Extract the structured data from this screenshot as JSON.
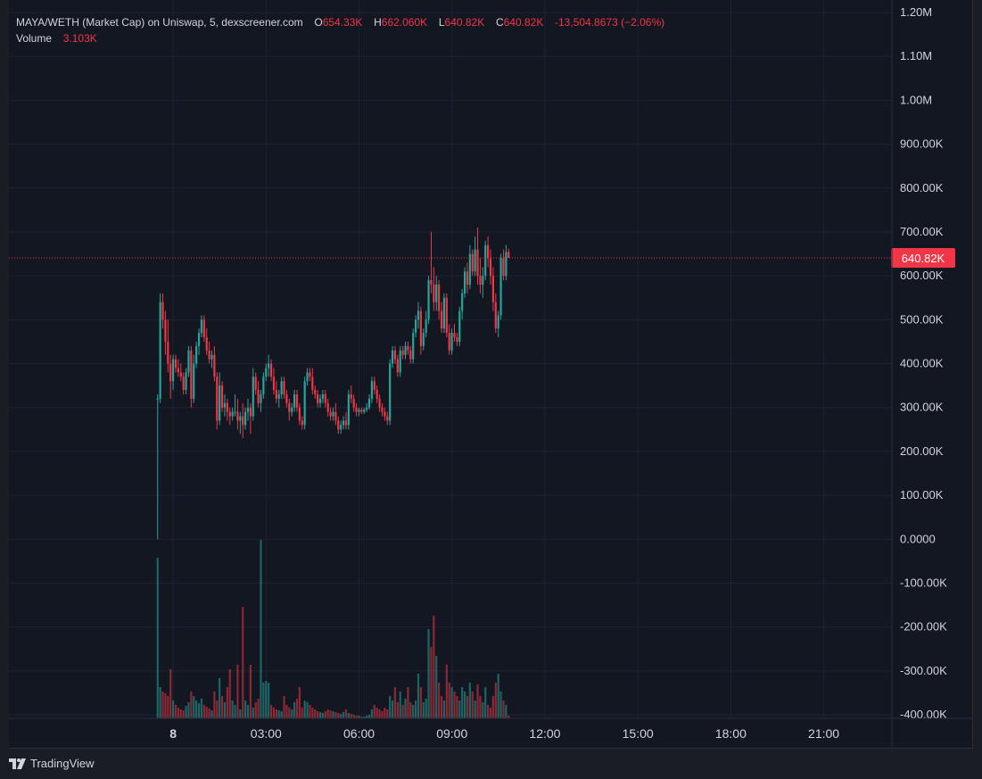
{
  "legend": {
    "symbol": "MAYA/WETH (Market Cap) on Uniswap, 5, dexscreener.com",
    "open_label": "O",
    "open_value": "654.33K",
    "high_label": "H",
    "high_value": "662.060K",
    "low_label": "L",
    "low_value": "640.82K",
    "close_label": "C",
    "close_value": "640.82K",
    "change": "-13,504.8673 (−2.06%)",
    "volume_label": "Volume",
    "volume_value": "3.103K"
  },
  "branding": {
    "logo_icon": "tradingview-logo-icon",
    "label": "TradingView"
  },
  "colors": {
    "up": "#26a69a",
    "down": "#f23645",
    "background": "#131722",
    "grid": "#1f2330",
    "text": "#d1d4dc"
  },
  "chart_data": {
    "type": "candlestick",
    "title": "MAYA/WETH (Market Cap) on Uniswap, 5, dexscreener.com",
    "interval": "5",
    "ylim": [
      -400000,
      1200000
    ],
    "y_ticks": [
      "1.20M",
      "1.10M",
      "1.00M",
      "900.00K",
      "800.00K",
      "700.00K",
      "600.00K",
      "500.00K",
      "400.00K",
      "300.00K",
      "200.00K",
      "100.00K",
      "0.0000",
      "-100.00K",
      "-200.00K",
      "-300.00K",
      "-400.00K"
    ],
    "y_tick_values": [
      1200000,
      1100000,
      1000000,
      900000,
      800000,
      700000,
      600000,
      500000,
      400000,
      300000,
      200000,
      100000,
      0,
      -100000,
      -200000,
      -300000,
      -400000
    ],
    "x_ticks": [
      "8",
      "03:00",
      "06:00",
      "09:00",
      "12:00",
      "15:00",
      "18:00",
      "21:00"
    ],
    "x_tick_hours": [
      0,
      3,
      6,
      9,
      12,
      15,
      18,
      21
    ],
    "x_range_hours": [
      -5.3,
      23.2
    ],
    "last_price": 640820,
    "last_price_label": "640.82K",
    "grid": true,
    "start_hour": -0.5,
    "bar_hours": 0.0833,
    "candles": [
      {
        "o": 320000,
        "h": 330000,
        "l": 0,
        "c": 320000,
        "v": 180
      },
      {
        "o": 320000,
        "h": 560000,
        "l": 310000,
        "c": 540000,
        "v": 35
      },
      {
        "o": 540000,
        "h": 560000,
        "l": 480000,
        "c": 500000,
        "v": 30
      },
      {
        "o": 500000,
        "h": 520000,
        "l": 420000,
        "c": 450000,
        "v": 28
      },
      {
        "o": 450000,
        "h": 500000,
        "l": 380000,
        "c": 400000,
        "v": 25
      },
      {
        "o": 400000,
        "h": 420000,
        "l": 320000,
        "c": 360000,
        "v": 55
      },
      {
        "o": 360000,
        "h": 420000,
        "l": 340000,
        "c": 410000,
        "v": 20
      },
      {
        "o": 410000,
        "h": 420000,
        "l": 380000,
        "c": 390000,
        "v": 15
      },
      {
        "o": 390000,
        "h": 410000,
        "l": 370000,
        "c": 380000,
        "v": 12
      },
      {
        "o": 380000,
        "h": 400000,
        "l": 360000,
        "c": 370000,
        "v": 10
      },
      {
        "o": 370000,
        "h": 380000,
        "l": 330000,
        "c": 340000,
        "v": 9
      },
      {
        "o": 340000,
        "h": 390000,
        "l": 330000,
        "c": 380000,
        "v": 14
      },
      {
        "o": 380000,
        "h": 440000,
        "l": 370000,
        "c": 430000,
        "v": 18
      },
      {
        "o": 430000,
        "h": 440000,
        "l": 300000,
        "c": 320000,
        "v": 30
      },
      {
        "o": 320000,
        "h": 420000,
        "l": 310000,
        "c": 400000,
        "v": 25
      },
      {
        "o": 400000,
        "h": 450000,
        "l": 390000,
        "c": 440000,
        "v": 20
      },
      {
        "o": 440000,
        "h": 480000,
        "l": 420000,
        "c": 470000,
        "v": 17
      },
      {
        "o": 470000,
        "h": 510000,
        "l": 460000,
        "c": 500000,
        "v": 22
      },
      {
        "o": 500000,
        "h": 510000,
        "l": 450000,
        "c": 460000,
        "v": 15
      },
      {
        "o": 460000,
        "h": 480000,
        "l": 420000,
        "c": 430000,
        "v": 13
      },
      {
        "o": 430000,
        "h": 450000,
        "l": 400000,
        "c": 410000,
        "v": 11
      },
      {
        "o": 410000,
        "h": 430000,
        "l": 390000,
        "c": 420000,
        "v": 9
      },
      {
        "o": 420000,
        "h": 440000,
        "l": 360000,
        "c": 370000,
        "v": 30
      },
      {
        "o": 370000,
        "h": 380000,
        "l": 250000,
        "c": 270000,
        "v": 20
      },
      {
        "o": 270000,
        "h": 380000,
        "l": 260000,
        "c": 350000,
        "v": 45
      },
      {
        "o": 350000,
        "h": 360000,
        "l": 290000,
        "c": 300000,
        "v": 25
      },
      {
        "o": 300000,
        "h": 330000,
        "l": 280000,
        "c": 310000,
        "v": 18
      },
      {
        "o": 310000,
        "h": 320000,
        "l": 270000,
        "c": 290000,
        "v": 35
      },
      {
        "o": 290000,
        "h": 300000,
        "l": 260000,
        "c": 280000,
        "v": 55
      },
      {
        "o": 280000,
        "h": 300000,
        "l": 270000,
        "c": 290000,
        "v": 20
      },
      {
        "o": 290000,
        "h": 330000,
        "l": 280000,
        "c": 290000,
        "v": 15
      },
      {
        "o": 290000,
        "h": 320000,
        "l": 250000,
        "c": 270000,
        "v": 60
      },
      {
        "o": 270000,
        "h": 290000,
        "l": 240000,
        "c": 280000,
        "v": 10
      },
      {
        "o": 280000,
        "h": 310000,
        "l": 230000,
        "c": 260000,
        "v": 125
      },
      {
        "o": 260000,
        "h": 300000,
        "l": 250000,
        "c": 290000,
        "v": 20
      },
      {
        "o": 290000,
        "h": 320000,
        "l": 270000,
        "c": 300000,
        "v": 15
      },
      {
        "o": 300000,
        "h": 310000,
        "l": 240000,
        "c": 280000,
        "v": 60
      },
      {
        "o": 280000,
        "h": 390000,
        "l": 270000,
        "c": 370000,
        "v": 12
      },
      {
        "o": 370000,
        "h": 380000,
        "l": 330000,
        "c": 340000,
        "v": 18
      },
      {
        "o": 340000,
        "h": 360000,
        "l": 300000,
        "c": 310000,
        "v": 22
      },
      {
        "o": 310000,
        "h": 340000,
        "l": 290000,
        "c": 330000,
        "v": 200
      },
      {
        "o": 330000,
        "h": 380000,
        "l": 320000,
        "c": 370000,
        "v": 40
      },
      {
        "o": 370000,
        "h": 400000,
        "l": 360000,
        "c": 390000,
        "v": 42
      },
      {
        "o": 390000,
        "h": 420000,
        "l": 370000,
        "c": 400000,
        "v": 40
      },
      {
        "o": 400000,
        "h": 410000,
        "l": 360000,
        "c": 370000,
        "v": 15
      },
      {
        "o": 370000,
        "h": 390000,
        "l": 330000,
        "c": 340000,
        "v": 12
      },
      {
        "o": 340000,
        "h": 360000,
        "l": 310000,
        "c": 320000,
        "v": 10
      },
      {
        "o": 320000,
        "h": 340000,
        "l": 300000,
        "c": 330000,
        "v": 9
      },
      {
        "o": 330000,
        "h": 370000,
        "l": 320000,
        "c": 360000,
        "v": 8
      },
      {
        "o": 360000,
        "h": 370000,
        "l": 320000,
        "c": 330000,
        "v": 25
      },
      {
        "o": 330000,
        "h": 340000,
        "l": 300000,
        "c": 310000,
        "v": 15
      },
      {
        "o": 310000,
        "h": 320000,
        "l": 270000,
        "c": 290000,
        "v": 12
      },
      {
        "o": 290000,
        "h": 310000,
        "l": 280000,
        "c": 300000,
        "v": 10
      },
      {
        "o": 300000,
        "h": 340000,
        "l": 290000,
        "c": 330000,
        "v": 18
      },
      {
        "o": 330000,
        "h": 340000,
        "l": 290000,
        "c": 300000,
        "v": 22
      },
      {
        "o": 300000,
        "h": 310000,
        "l": 260000,
        "c": 270000,
        "v": 35
      },
      {
        "o": 270000,
        "h": 280000,
        "l": 250000,
        "c": 260000,
        "v": 12
      },
      {
        "o": 260000,
        "h": 370000,
        "l": 250000,
        "c": 360000,
        "v": 20
      },
      {
        "o": 360000,
        "h": 390000,
        "l": 350000,
        "c": 380000,
        "v": 18
      },
      {
        "o": 380000,
        "h": 390000,
        "l": 360000,
        "c": 370000,
        "v": 15
      },
      {
        "o": 370000,
        "h": 390000,
        "l": 330000,
        "c": 340000,
        "v": 12
      },
      {
        "o": 340000,
        "h": 350000,
        "l": 320000,
        "c": 330000,
        "v": 10
      },
      {
        "o": 330000,
        "h": 340000,
        "l": 300000,
        "c": 310000,
        "v": 8
      },
      {
        "o": 310000,
        "h": 330000,
        "l": 300000,
        "c": 320000,
        "v": 7
      },
      {
        "o": 320000,
        "h": 340000,
        "l": 310000,
        "c": 330000,
        "v": 6
      },
      {
        "o": 330000,
        "h": 340000,
        "l": 300000,
        "c": 310000,
        "v": 8
      },
      {
        "o": 310000,
        "h": 320000,
        "l": 280000,
        "c": 290000,
        "v": 10
      },
      {
        "o": 290000,
        "h": 300000,
        "l": 270000,
        "c": 280000,
        "v": 9
      },
      {
        "o": 280000,
        "h": 300000,
        "l": 270000,
        "c": 290000,
        "v": 8
      },
      {
        "o": 290000,
        "h": 310000,
        "l": 260000,
        "c": 270000,
        "v": 7
      },
      {
        "o": 270000,
        "h": 280000,
        "l": 240000,
        "c": 250000,
        "v": 6
      },
      {
        "o": 250000,
        "h": 270000,
        "l": 240000,
        "c": 260000,
        "v": 5
      },
      {
        "o": 260000,
        "h": 280000,
        "l": 250000,
        "c": 270000,
        "v": 7
      },
      {
        "o": 270000,
        "h": 290000,
        "l": 250000,
        "c": 260000,
        "v": 10
      },
      {
        "o": 260000,
        "h": 340000,
        "l": 250000,
        "c": 330000,
        "v": 6
      },
      {
        "o": 330000,
        "h": 350000,
        "l": 310000,
        "c": 320000,
        "v": 5
      },
      {
        "o": 320000,
        "h": 330000,
        "l": 290000,
        "c": 300000,
        "v": 4
      },
      {
        "o": 300000,
        "h": 310000,
        "l": 280000,
        "c": 290000,
        "v": 3
      },
      {
        "o": 290000,
        "h": 300000,
        "l": 280000,
        "c": 295000,
        "v": 3
      },
      {
        "o": 295000,
        "h": 300000,
        "l": 285000,
        "c": 290000,
        "v": 2
      },
      {
        "o": 290000,
        "h": 300000,
        "l": 285000,
        "c": 295000,
        "v": 2
      },
      {
        "o": 295000,
        "h": 310000,
        "l": 290000,
        "c": 300000,
        "v": 3
      },
      {
        "o": 300000,
        "h": 330000,
        "l": 295000,
        "c": 320000,
        "v": 4
      },
      {
        "o": 320000,
        "h": 370000,
        "l": 310000,
        "c": 360000,
        "v": 10
      },
      {
        "o": 360000,
        "h": 370000,
        "l": 330000,
        "c": 340000,
        "v": 15
      },
      {
        "o": 340000,
        "h": 350000,
        "l": 310000,
        "c": 320000,
        "v": 12
      },
      {
        "o": 320000,
        "h": 330000,
        "l": 290000,
        "c": 300000,
        "v": 10
      },
      {
        "o": 300000,
        "h": 310000,
        "l": 280000,
        "c": 290000,
        "v": 8
      },
      {
        "o": 290000,
        "h": 300000,
        "l": 270000,
        "c": 280000,
        "v": 12
      },
      {
        "o": 280000,
        "h": 290000,
        "l": 260000,
        "c": 270000,
        "v": 10
      },
      {
        "o": 270000,
        "h": 410000,
        "l": 260000,
        "c": 400000,
        "v": 25
      },
      {
        "o": 400000,
        "h": 440000,
        "l": 390000,
        "c": 430000,
        "v": 20
      },
      {
        "o": 430000,
        "h": 440000,
        "l": 400000,
        "c": 410000,
        "v": 35
      },
      {
        "o": 410000,
        "h": 420000,
        "l": 370000,
        "c": 380000,
        "v": 18
      },
      {
        "o": 380000,
        "h": 440000,
        "l": 370000,
        "c": 430000,
        "v": 30
      },
      {
        "o": 430000,
        "h": 440000,
        "l": 410000,
        "c": 420000,
        "v": 15
      },
      {
        "o": 420000,
        "h": 450000,
        "l": 410000,
        "c": 440000,
        "v": 22
      },
      {
        "o": 440000,
        "h": 450000,
        "l": 420000,
        "c": 430000,
        "v": 35
      },
      {
        "o": 430000,
        "h": 440000,
        "l": 400000,
        "c": 410000,
        "v": 18
      },
      {
        "o": 410000,
        "h": 480000,
        "l": 400000,
        "c": 470000,
        "v": 15
      },
      {
        "o": 470000,
        "h": 510000,
        "l": 460000,
        "c": 500000,
        "v": 20
      },
      {
        "o": 500000,
        "h": 540000,
        "l": 480000,
        "c": 520000,
        "v": 50
      },
      {
        "o": 520000,
        "h": 530000,
        "l": 420000,
        "c": 440000,
        "v": 35
      },
      {
        "o": 440000,
        "h": 480000,
        "l": 430000,
        "c": 470000,
        "v": 18
      },
      {
        "o": 470000,
        "h": 520000,
        "l": 460000,
        "c": 500000,
        "v": 22
      },
      {
        "o": 500000,
        "h": 600000,
        "l": 490000,
        "c": 590000,
        "v": 100
      },
      {
        "o": 590000,
        "h": 700000,
        "l": 560000,
        "c": 580000,
        "v": 80
      },
      {
        "o": 580000,
        "h": 620000,
        "l": 520000,
        "c": 540000,
        "v": 115
      },
      {
        "o": 540000,
        "h": 600000,
        "l": 520000,
        "c": 580000,
        "v": 70
      },
      {
        "o": 580000,
        "h": 590000,
        "l": 500000,
        "c": 520000,
        "v": 40
      },
      {
        "o": 520000,
        "h": 540000,
        "l": 470000,
        "c": 480000,
        "v": 25
      },
      {
        "o": 480000,
        "h": 560000,
        "l": 470000,
        "c": 550000,
        "v": 20
      },
      {
        "o": 550000,
        "h": 560000,
        "l": 460000,
        "c": 470000,
        "v": 60
      },
      {
        "o": 470000,
        "h": 490000,
        "l": 420000,
        "c": 430000,
        "v": 40
      },
      {
        "o": 430000,
        "h": 480000,
        "l": 420000,
        "c": 470000,
        "v": 35
      },
      {
        "o": 470000,
        "h": 490000,
        "l": 450000,
        "c": 460000,
        "v": 30
      },
      {
        "o": 460000,
        "h": 470000,
        "l": 440000,
        "c": 450000,
        "v": 25
      },
      {
        "o": 450000,
        "h": 530000,
        "l": 440000,
        "c": 520000,
        "v": 20
      },
      {
        "o": 520000,
        "h": 570000,
        "l": 500000,
        "c": 560000,
        "v": 35
      },
      {
        "o": 560000,
        "h": 620000,
        "l": 550000,
        "c": 610000,
        "v": 30
      },
      {
        "o": 610000,
        "h": 630000,
        "l": 560000,
        "c": 580000,
        "v": 25
      },
      {
        "o": 580000,
        "h": 670000,
        "l": 570000,
        "c": 650000,
        "v": 40
      },
      {
        "o": 650000,
        "h": 660000,
        "l": 600000,
        "c": 610000,
        "v": 30
      },
      {
        "o": 610000,
        "h": 690000,
        "l": 600000,
        "c": 660000,
        "v": 20
      },
      {
        "o": 660000,
        "h": 710000,
        "l": 580000,
        "c": 600000,
        "v": 38
      },
      {
        "o": 600000,
        "h": 640000,
        "l": 560000,
        "c": 580000,
        "v": 25
      },
      {
        "o": 580000,
        "h": 620000,
        "l": 550000,
        "c": 600000,
        "v": 18
      },
      {
        "o": 600000,
        "h": 680000,
        "l": 590000,
        "c": 670000,
        "v": 35
      },
      {
        "o": 670000,
        "h": 690000,
        "l": 620000,
        "c": 640000,
        "v": 15
      },
      {
        "o": 640000,
        "h": 660000,
        "l": 580000,
        "c": 600000,
        "v": 12
      },
      {
        "o": 600000,
        "h": 620000,
        "l": 520000,
        "c": 540000,
        "v": 25
      },
      {
        "o": 540000,
        "h": 560000,
        "l": 470000,
        "c": 480000,
        "v": 40
      },
      {
        "o": 480000,
        "h": 520000,
        "l": 460000,
        "c": 510000,
        "v": 50
      },
      {
        "o": 510000,
        "h": 650000,
        "l": 500000,
        "c": 640000,
        "v": 30
      },
      {
        "o": 640000,
        "h": 660000,
        "l": 590000,
        "c": 600000,
        "v": 20
      },
      {
        "o": 600000,
        "h": 670000,
        "l": 590000,
        "c": 654330,
        "v": 15
      },
      {
        "o": 654330,
        "h": 662060,
        "l": 640820,
        "c": 640820,
        "v": 3.103
      }
    ]
  }
}
